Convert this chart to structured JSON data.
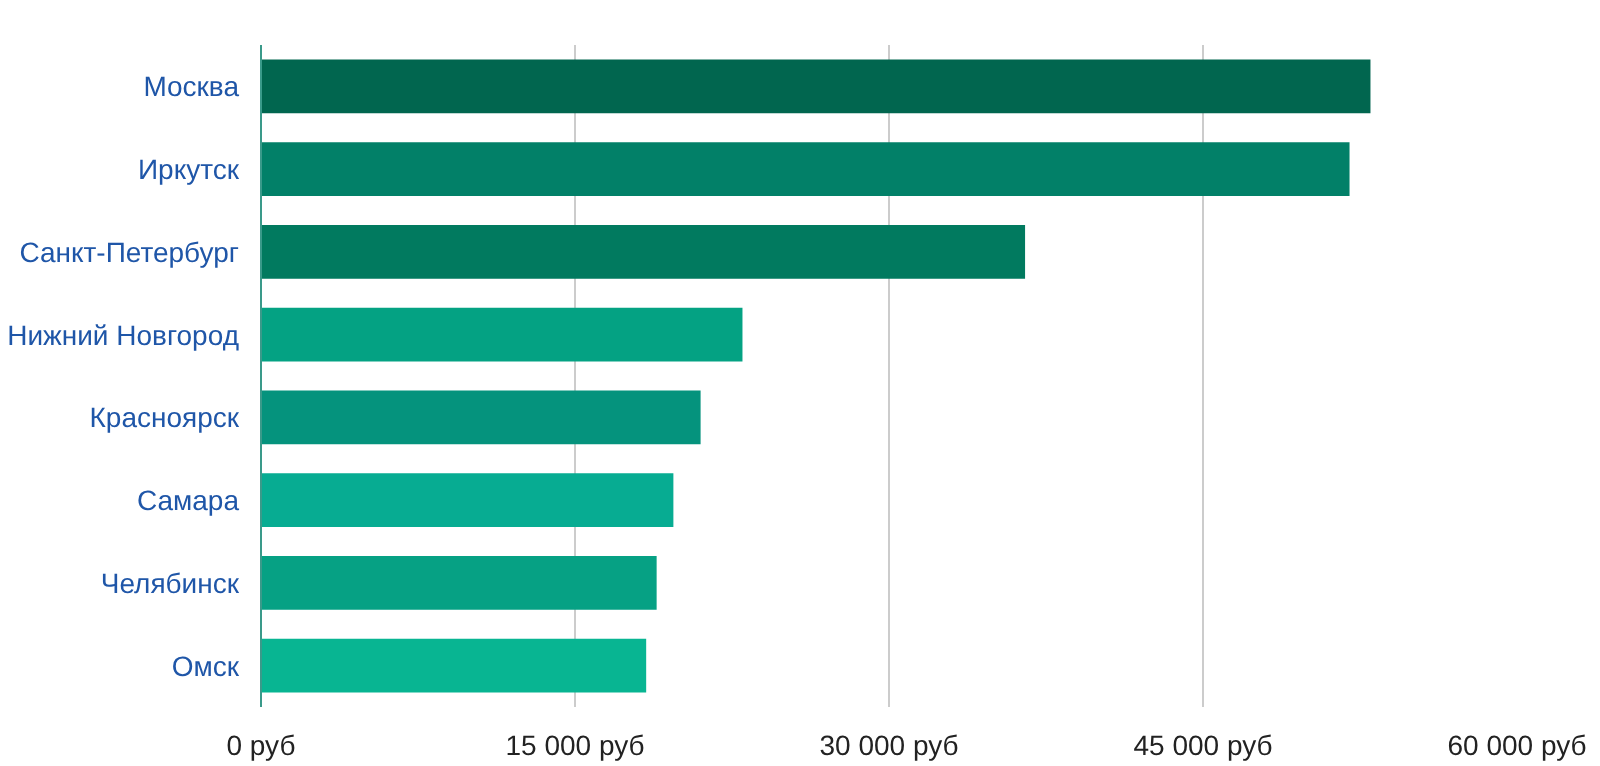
{
  "chart_data": {
    "type": "bar",
    "orientation": "horizontal",
    "categories": [
      "Москва",
      "Иркутск",
      "Санкт-Петербург",
      "Нижний Новгород",
      "Красноярск",
      "Самара",
      "Челябинск",
      "Омск"
    ],
    "values": [
      53000,
      52000,
      36500,
      23000,
      21000,
      19700,
      18900,
      18400
    ],
    "colors": [
      "#01664f",
      "#028068",
      "#017a5f",
      "#04a283",
      "#05937d",
      "#07ac92",
      "#06a184",
      "#08b592"
    ],
    "xlim": [
      0,
      60000
    ],
    "xticks": [
      {
        "value": 0,
        "label": "0 руб"
      },
      {
        "value": 15000,
        "label": "15 000 руб"
      },
      {
        "value": 30000,
        "label": "30 000 руб"
      },
      {
        "value": 45000,
        "label": "45 000 руб"
      },
      {
        "value": 60000,
        "label": "60 000 руб"
      }
    ],
    "grid": "x"
  }
}
